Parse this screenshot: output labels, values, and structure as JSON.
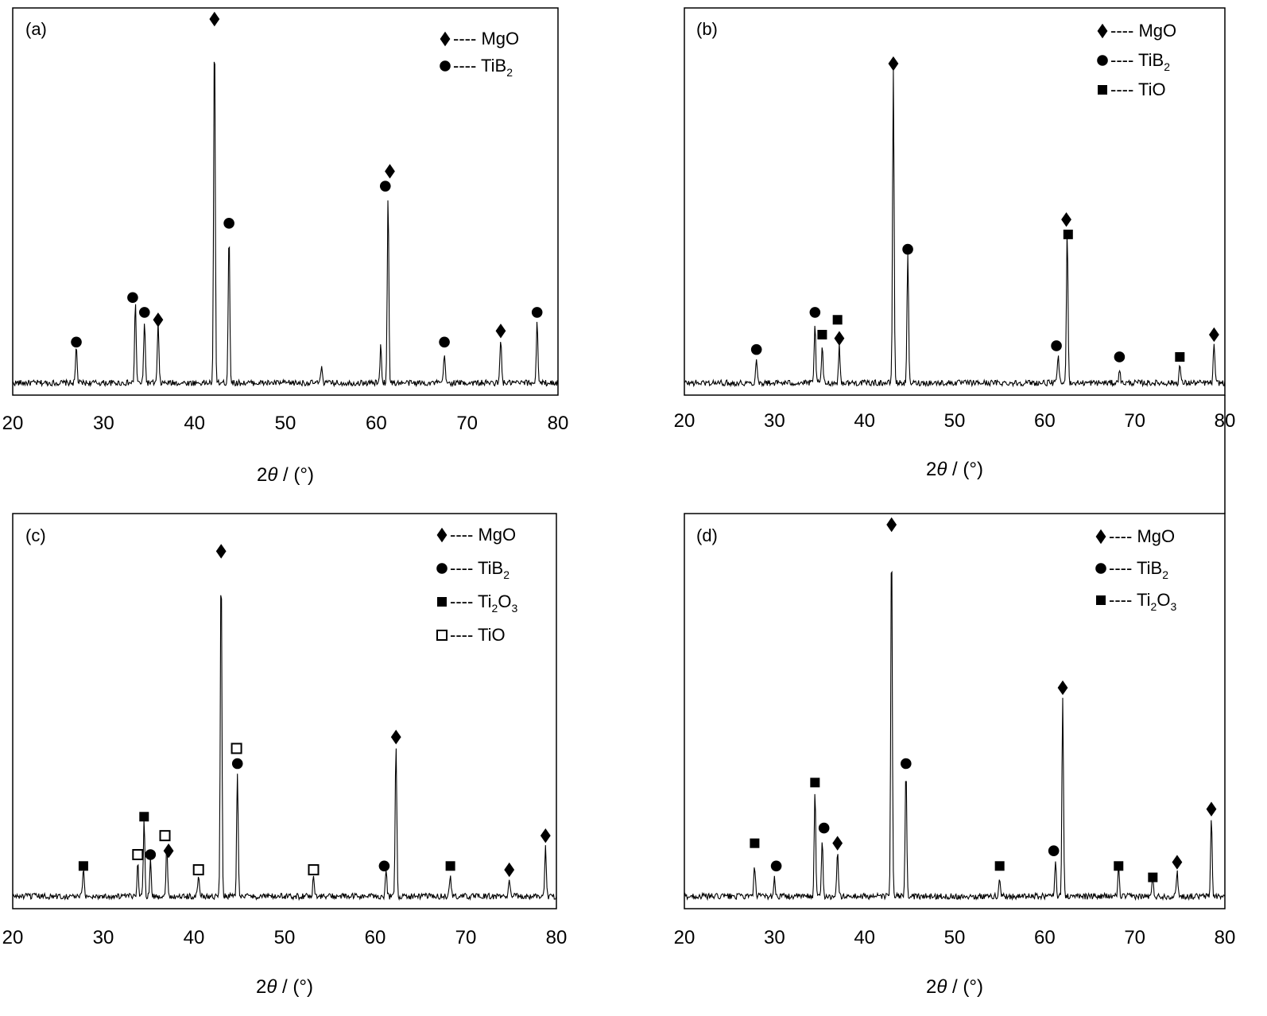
{
  "figure": {
    "panels": [
      {
        "id": "a",
        "label": "(a)",
        "xlabel_main": "2",
        "xlabel_theta": "θ",
        "xlabel_unit": " / (°)"
      },
      {
        "id": "b",
        "label": "(b)",
        "xlabel_main": "2",
        "xlabel_theta": "θ",
        "xlabel_unit": " / (°)"
      },
      {
        "id": "c",
        "label": "(c)",
        "xlabel_main": "2",
        "xlabel_theta": "θ",
        "xlabel_unit": " / (°)"
      },
      {
        "id": "d",
        "label": "(d)",
        "xlabel_main": "2",
        "xlabel_theta": "θ",
        "xlabel_unit": " / (°)"
      }
    ],
    "legend_dashes": "----",
    "phase_names": {
      "mgo": {
        "base": "MgO",
        "sub": ""
      },
      "tib2": {
        "base": "TiB",
        "sub": "2"
      },
      "tio": {
        "base": "TiO",
        "sub": ""
      },
      "ti2o3": {
        "base": "Ti",
        "sub": "2",
        "base2": "O",
        "sub2": "3"
      }
    }
  },
  "chart_data": [
    {
      "type": "line",
      "panel": "(a)",
      "xlabel": "2θ / (°)",
      "ylabel": "",
      "xlim": [
        20,
        80
      ],
      "xticks": [
        20,
        30,
        40,
        50,
        60,
        70,
        80
      ],
      "ylim": [
        0,
        100
      ],
      "grid": false,
      "legend_position": "top-right",
      "legend": [
        {
          "symbol": "diamond",
          "name": "MgO"
        },
        {
          "symbol": "circle",
          "name": "TiB2"
        }
      ],
      "series": [
        {
          "peaks": [
            [
              27,
              10
            ],
            [
              33.5,
              22
            ],
            [
              34.5,
              17
            ],
            [
              36,
              16
            ],
            [
              42.2,
              96
            ],
            [
              43.8,
              41
            ],
            [
              54,
              5
            ],
            [
              60.5,
              10
            ],
            [
              61.3,
              51
            ],
            [
              67.5,
              8
            ],
            [
              73.7,
              12
            ],
            [
              77.7,
              17
            ]
          ]
        }
      ],
      "markers": [
        {
          "x": 27,
          "y": 13,
          "phase": "tib2"
        },
        {
          "x": 33.2,
          "y": 25,
          "phase": "tib2"
        },
        {
          "x": 34.5,
          "y": 21,
          "phase": "tib2"
        },
        {
          "x": 36,
          "y": 19,
          "phase": "mgo"
        },
        {
          "x": 42.2,
          "y": 100,
          "phase": "mgo"
        },
        {
          "x": 43.8,
          "y": 45,
          "phase": "tib2"
        },
        {
          "x": 61,
          "y": 55,
          "phase": "tib2"
        },
        {
          "x": 61.5,
          "y": 59,
          "phase": "mgo"
        },
        {
          "x": 67.5,
          "y": 13,
          "phase": "tib2"
        },
        {
          "x": 73.7,
          "y": 16,
          "phase": "mgo"
        },
        {
          "x": 77.7,
          "y": 21,
          "phase": "tib2"
        }
      ]
    },
    {
      "type": "line",
      "panel": "(b)",
      "xlabel": "2θ / (°)",
      "ylabel": "",
      "xlim": [
        20,
        80
      ],
      "xticks": [
        20,
        30,
        40,
        50,
        60,
        70,
        80
      ],
      "ylim": [
        0,
        100
      ],
      "grid": false,
      "legend_position": "top-right",
      "legend": [
        {
          "symbol": "diamond",
          "name": "MgO"
        },
        {
          "symbol": "circle",
          "name": "TiB2"
        },
        {
          "symbol": "square",
          "name": "TiO"
        }
      ],
      "series": [
        {
          "peaks": [
            [
              28,
              7
            ],
            [
              34.5,
              16
            ],
            [
              35.3,
              10
            ],
            [
              37.2,
              10
            ],
            [
              43.2,
              84
            ],
            [
              44.8,
              35
            ],
            [
              61.5,
              8
            ],
            [
              62.5,
              42
            ],
            [
              68.3,
              4
            ],
            [
              75,
              5
            ],
            [
              78.8,
              11
            ]
          ]
        }
      ],
      "markers": [
        {
          "x": 28,
          "y": 11,
          "phase": "tib2"
        },
        {
          "x": 34.5,
          "y": 21,
          "phase": "tib2"
        },
        {
          "x": 35.3,
          "y": 15,
          "phase": "tio"
        },
        {
          "x": 37,
          "y": 19,
          "phase": "tio"
        },
        {
          "x": 37.2,
          "y": 14,
          "phase": "mgo"
        },
        {
          "x": 43.2,
          "y": 88,
          "phase": "mgo"
        },
        {
          "x": 44.8,
          "y": 38,
          "phase": "tib2"
        },
        {
          "x": 61.3,
          "y": 12,
          "phase": "tib2"
        },
        {
          "x": 62.4,
          "y": 46,
          "phase": "mgo"
        },
        {
          "x": 62.6,
          "y": 42,
          "phase": "tio"
        },
        {
          "x": 68.3,
          "y": 9,
          "phase": "tib2"
        },
        {
          "x": 75,
          "y": 9,
          "phase": "tio"
        },
        {
          "x": 78.8,
          "y": 15,
          "phase": "mgo"
        }
      ]
    },
    {
      "type": "line",
      "panel": "(c)",
      "xlabel": "2θ / (°)",
      "ylabel": "",
      "xlim": [
        20,
        80
      ],
      "xticks": [
        20,
        30,
        40,
        50,
        60,
        70,
        80
      ],
      "ylim": [
        0,
        100
      ],
      "grid": false,
      "legend_position": "top-right",
      "legend": [
        {
          "symbol": "diamond",
          "name": "MgO"
        },
        {
          "symbol": "circle",
          "name": "TiB2"
        },
        {
          "symbol": "square",
          "name": "Ti2O3"
        },
        {
          "symbol": "open-square",
          "name": "TiO"
        }
      ],
      "series": [
        {
          "peaks": [
            [
              27.8,
              7
            ],
            [
              33.8,
              9
            ],
            [
              34.5,
              20
            ],
            [
              35.2,
              10
            ],
            [
              37,
              13
            ],
            [
              40.5,
              6
            ],
            [
              43,
              88
            ],
            [
              44.8,
              33
            ],
            [
              53.2,
              6
            ],
            [
              61.2,
              7
            ],
            [
              62.3,
              40
            ],
            [
              68.3,
              6
            ],
            [
              74.8,
              5
            ],
            [
              78.8,
              13
            ]
          ]
        }
      ],
      "markers": [
        {
          "x": 27.8,
          "y": 10,
          "phase": "ti2o3"
        },
        {
          "x": 33.8,
          "y": 13,
          "phase": "tio"
        },
        {
          "x": 34.5,
          "y": 23,
          "phase": "ti2o3"
        },
        {
          "x": 35.2,
          "y": 13,
          "phase": "tib2"
        },
        {
          "x": 36.8,
          "y": 18,
          "phase": "tio"
        },
        {
          "x": 37.2,
          "y": 14,
          "phase": "mgo"
        },
        {
          "x": 40.5,
          "y": 9,
          "phase": "tio"
        },
        {
          "x": 43,
          "y": 93,
          "phase": "mgo"
        },
        {
          "x": 44.7,
          "y": 41,
          "phase": "tio"
        },
        {
          "x": 44.8,
          "y": 37,
          "phase": "tib2"
        },
        {
          "x": 53.2,
          "y": 9,
          "phase": "tio"
        },
        {
          "x": 61,
          "y": 10,
          "phase": "tib2"
        },
        {
          "x": 62.3,
          "y": 44,
          "phase": "mgo"
        },
        {
          "x": 68.3,
          "y": 10,
          "phase": "ti2o3"
        },
        {
          "x": 74.8,
          "y": 9,
          "phase": "mgo"
        },
        {
          "x": 78.8,
          "y": 18,
          "phase": "mgo"
        }
      ]
    },
    {
      "type": "line",
      "panel": "(d)",
      "xlabel": "2θ / (°)",
      "ylabel": "",
      "xlim": [
        20,
        80
      ],
      "xticks": [
        20,
        30,
        40,
        50,
        60,
        70,
        80
      ],
      "ylim": [
        0,
        100
      ],
      "grid": false,
      "legend_position": "top-right",
      "legend": [
        {
          "symbol": "diamond",
          "name": "MgO"
        },
        {
          "symbol": "circle",
          "name": "TiB2"
        },
        {
          "symbol": "square",
          "name": "Ti2O3"
        }
      ],
      "series": [
        {
          "peaks": [
            [
              27.8,
              8
            ],
            [
              30,
              5
            ],
            [
              34.5,
              28
            ],
            [
              35.3,
              15
            ],
            [
              37,
              12
            ],
            [
              43,
              96
            ],
            [
              44.6,
              33
            ],
            [
              55,
              5
            ],
            [
              61.2,
              10
            ],
            [
              62,
              53
            ],
            [
              68.2,
              8
            ],
            [
              72,
              5
            ],
            [
              74.7,
              7
            ],
            [
              78.5,
              21
            ]
          ]
        }
      ],
      "markers": [
        {
          "x": 27.8,
          "y": 16,
          "phase": "ti2o3"
        },
        {
          "x": 30.2,
          "y": 10,
          "phase": "tib2"
        },
        {
          "x": 34.5,
          "y": 32,
          "phase": "ti2o3"
        },
        {
          "x": 35.5,
          "y": 20,
          "phase": "tib2"
        },
        {
          "x": 37,
          "y": 16,
          "phase": "mgo"
        },
        {
          "x": 43,
          "y": 100,
          "phase": "mgo"
        },
        {
          "x": 44.6,
          "y": 37,
          "phase": "tib2"
        },
        {
          "x": 55,
          "y": 10,
          "phase": "ti2o3"
        },
        {
          "x": 61,
          "y": 14,
          "phase": "tib2"
        },
        {
          "x": 62,
          "y": 57,
          "phase": "mgo"
        },
        {
          "x": 68.2,
          "y": 10,
          "phase": "ti2o3"
        },
        {
          "x": 72,
          "y": 7,
          "phase": "ti2o3"
        },
        {
          "x": 74.7,
          "y": 11,
          "phase": "mgo"
        },
        {
          "x": 78.5,
          "y": 25,
          "phase": "mgo"
        }
      ]
    }
  ]
}
